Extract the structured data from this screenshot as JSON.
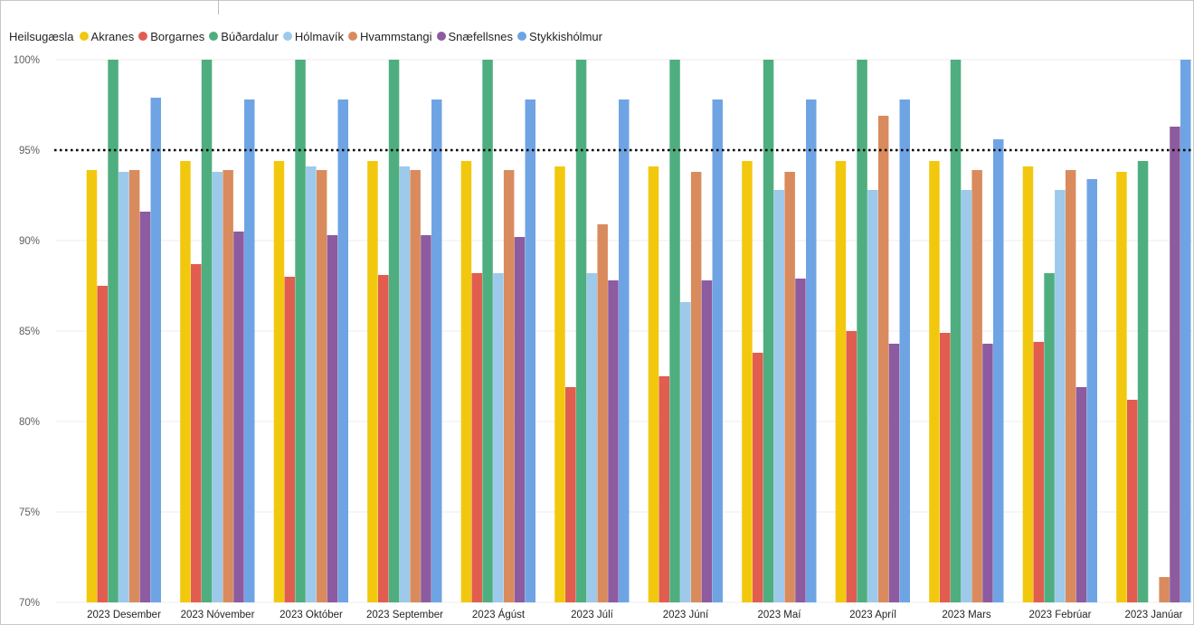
{
  "chart_data": {
    "type": "bar",
    "legend_title": "Heilsugæsla",
    "legend_position": "top-left",
    "categories": [
      "2023 Desember",
      "2023 Nóvember",
      "2023 Október",
      "2023 September",
      "2023 Ágúst",
      "2023 Júlí",
      "2023 Júní",
      "2023 Maí",
      "2023 Apríl",
      "2023 Mars",
      "2023 Febrúar",
      "2023 Janúar"
    ],
    "series": [
      {
        "name": "Akranes",
        "color": "#F2C80F",
        "values": [
          93.9,
          94.4,
          94.4,
          94.4,
          94.4,
          94.1,
          94.1,
          94.4,
          94.4,
          94.4,
          94.1,
          93.8
        ]
      },
      {
        "name": "Borgarnes",
        "color": "#E15D50",
        "values": [
          87.5,
          88.7,
          88.0,
          88.1,
          88.2,
          81.9,
          82.5,
          83.8,
          85.0,
          84.9,
          84.4,
          81.2
        ]
      },
      {
        "name": "Búðardalur",
        "color": "#4FAE7F",
        "values": [
          100,
          100,
          100,
          100,
          100,
          100,
          100,
          100,
          100,
          100,
          88.2,
          94.4
        ]
      },
      {
        "name": "Hólmavík",
        "color": "#9DC9EB",
        "values": [
          93.8,
          93.8,
          94.1,
          94.1,
          88.2,
          88.2,
          86.6,
          92.8,
          92.8,
          92.8,
          92.8,
          null
        ]
      },
      {
        "name": "Hvammstangi",
        "color": "#D98B5E",
        "values": [
          93.9,
          93.9,
          93.9,
          93.9,
          93.9,
          90.9,
          93.8,
          93.8,
          96.9,
          93.9,
          93.9,
          71.4
        ]
      },
      {
        "name": "Snæfellsnes",
        "color": "#8C5BA0",
        "values": [
          91.6,
          90.5,
          90.3,
          90.3,
          90.2,
          87.8,
          87.8,
          87.9,
          84.3,
          84.3,
          81.9,
          96.3
        ]
      },
      {
        "name": "Stykkishólmur",
        "color": "#6FA4E4",
        "values": [
          97.9,
          97.8,
          97.8,
          97.8,
          97.8,
          97.8,
          97.8,
          97.8,
          97.8,
          95.6,
          93.4,
          100
        ]
      }
    ],
    "ylim": [
      70,
      100
    ],
    "yticks": [
      "70%",
      "75%",
      "80%",
      "85%",
      "90%",
      "95%",
      "100%"
    ],
    "ytick_values": [
      70,
      75,
      80,
      85,
      90,
      95,
      100
    ],
    "reference_line": {
      "value": 95,
      "style": "dotted",
      "color": "#000000"
    },
    "grid": true,
    "xlabel": "",
    "ylabel": ""
  }
}
